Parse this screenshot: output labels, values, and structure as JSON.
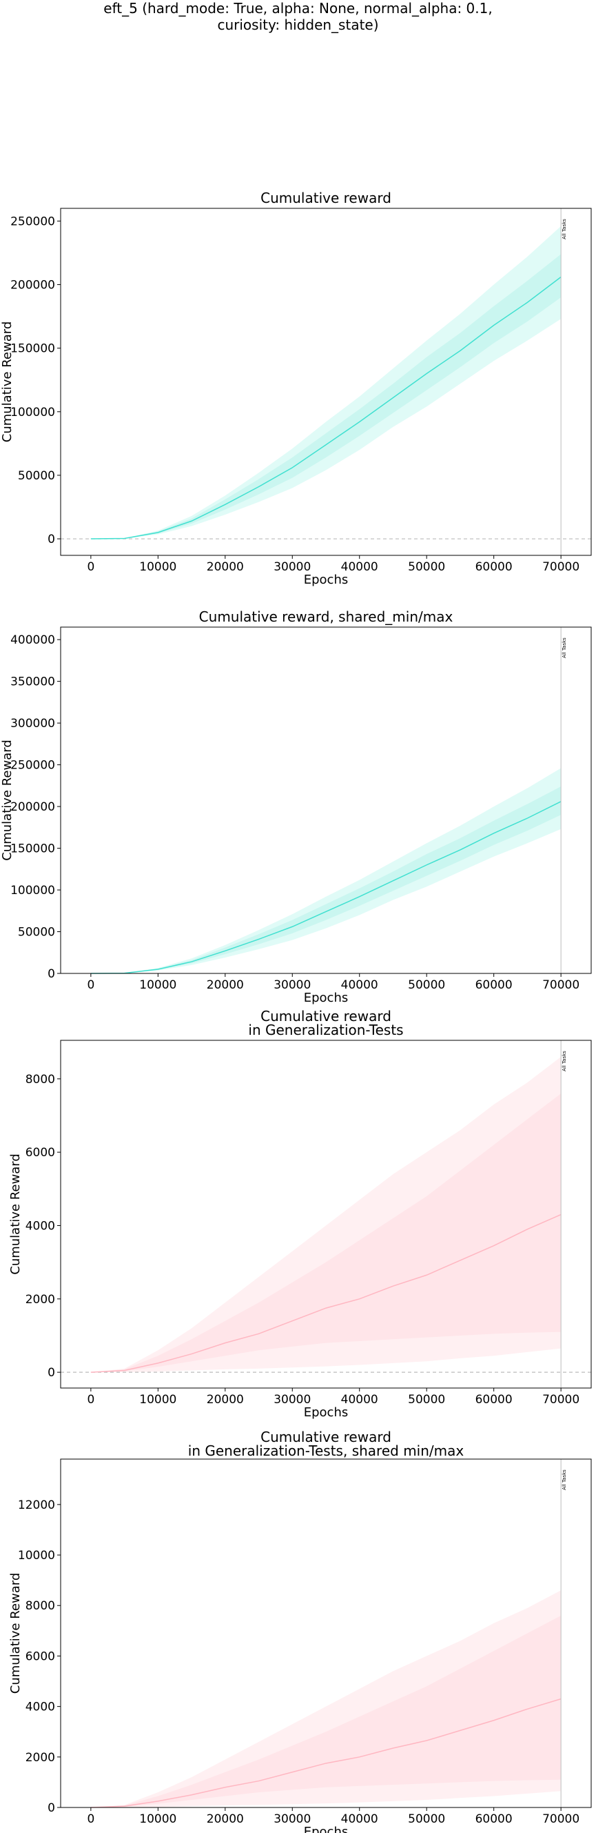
{
  "figure": {
    "suptitle_lines": [
      "eft_5 (hard_mode: True, alpha: None, normal_alpha: 0.1,",
      "curiosity: hidden_state)"
    ]
  },
  "colors": {
    "train_line": "#40e0d0",
    "train_band": "#e0fbf7",
    "train_band_inner": "#c6f5ef",
    "gen_line": "#ffb6c1",
    "gen_band": "#fff0f2",
    "gen_band_inner": "#ffe3e8",
    "marker_line": "#bbbbbb",
    "zero_line": "#bbbbbb"
  },
  "chart_data": [
    {
      "type": "line",
      "title_lines": [
        "Cumulative reward"
      ],
      "xlabel": "Epochs",
      "ylabel": "Cumulative Reward",
      "xlim": [
        -4500,
        74500
      ],
      "ylim": [
        -13000,
        260000
      ],
      "xticks": [
        0,
        10000,
        20000,
        30000,
        40000,
        50000,
        60000,
        70000
      ],
      "xtick_labels": [
        "0",
        "10000",
        "20000",
        "30000",
        "40000",
        "50000",
        "60000",
        "70000"
      ],
      "yticks": [
        0,
        50000,
        100000,
        150000,
        200000,
        250000
      ],
      "ytick_labels": [
        "0",
        "50000",
        "100000",
        "150000",
        "200000",
        "250000"
      ],
      "zero_line": true,
      "vline": {
        "x": 70000,
        "label": "All Tasks"
      },
      "series": [
        {
          "x": [
            0,
            5000,
            10000,
            15000,
            20000,
            25000,
            30000,
            35000,
            40000,
            45000,
            50000,
            55000,
            60000,
            65000,
            70000
          ],
          "mean": [
            0,
            300,
            5000,
            14000,
            27000,
            41000,
            56000,
            74000,
            92000,
            111000,
            130000,
            148000,
            168000,
            186000,
            206000
          ],
          "lower": [
            0,
            150,
            3500,
            10000,
            19000,
            29000,
            40000,
            54000,
            70000,
            88000,
            104000,
            122000,
            140000,
            156000,
            173000
          ],
          "upper": [
            0,
            450,
            6500,
            18000,
            34000,
            52000,
            71000,
            92000,
            112000,
            134000,
            156000,
            177000,
            200000,
            222000,
            246000
          ],
          "inner_lower": [
            0,
            200,
            4200,
            12000,
            23000,
            35000,
            48000,
            64000,
            81000,
            99000,
            117000,
            135000,
            154000,
            171000,
            190000
          ],
          "inner_upper": [
            0,
            400,
            5800,
            16000,
            31000,
            47000,
            64000,
            83000,
            102000,
            122000,
            143000,
            162000,
            183000,
            203000,
            224000
          ]
        }
      ]
    },
    {
      "type": "line",
      "title_lines": [
        "Cumulative reward, shared_min/max"
      ],
      "xlabel": "Epochs",
      "ylabel": "Cumulative Reward",
      "xlim": [
        -4500,
        74500
      ],
      "ylim": [
        0,
        415000
      ],
      "xticks": [
        0,
        10000,
        20000,
        30000,
        40000,
        50000,
        60000,
        70000
      ],
      "xtick_labels": [
        "0",
        "10000",
        "20000",
        "30000",
        "40000",
        "50000",
        "60000",
        "70000"
      ],
      "yticks": [
        0,
        50000,
        100000,
        150000,
        200000,
        250000,
        300000,
        350000,
        400000
      ],
      "ytick_labels": [
        "0",
        "50000",
        "100000",
        "150000",
        "200000",
        "250000",
        "300000",
        "350000",
        "400000"
      ],
      "zero_line": false,
      "vline": {
        "x": 70000,
        "label": "All Tasks"
      },
      "series": [
        {
          "x": [
            0,
            5000,
            10000,
            15000,
            20000,
            25000,
            30000,
            35000,
            40000,
            45000,
            50000,
            55000,
            60000,
            65000,
            70000
          ],
          "mean": [
            0,
            300,
            5000,
            14000,
            27000,
            41000,
            56000,
            74000,
            92000,
            111000,
            130000,
            148000,
            168000,
            186000,
            206000
          ],
          "lower": [
            0,
            150,
            3500,
            10000,
            19000,
            29000,
            40000,
            54000,
            70000,
            88000,
            104000,
            122000,
            140000,
            156000,
            173000
          ],
          "upper": [
            0,
            450,
            6500,
            18000,
            34000,
            52000,
            71000,
            92000,
            112000,
            134000,
            156000,
            177000,
            200000,
            222000,
            246000
          ],
          "inner_lower": [
            0,
            200,
            4200,
            12000,
            23000,
            35000,
            48000,
            64000,
            81000,
            99000,
            117000,
            135000,
            154000,
            171000,
            190000
          ],
          "inner_upper": [
            0,
            400,
            5800,
            16000,
            31000,
            47000,
            64000,
            83000,
            102000,
            122000,
            143000,
            162000,
            183000,
            203000,
            224000
          ]
        }
      ]
    },
    {
      "type": "line",
      "title_lines": [
        "Cumulative reward",
        "in Generalization-Tests"
      ],
      "xlabel": "Epochs",
      "ylabel": "Cumulative Reward",
      "xlim": [
        -4500,
        74500
      ],
      "ylim": [
        -430,
        9050
      ],
      "xticks": [
        0,
        10000,
        20000,
        30000,
        40000,
        50000,
        60000,
        70000
      ],
      "xtick_labels": [
        "0",
        "10000",
        "20000",
        "30000",
        "40000",
        "50000",
        "60000",
        "70000"
      ],
      "yticks": [
        0,
        2000,
        4000,
        6000,
        8000
      ],
      "ytick_labels": [
        "0",
        "2000",
        "4000",
        "6000",
        "8000"
      ],
      "zero_line": true,
      "vline": {
        "x": 70000,
        "label": "All Tasks"
      },
      "series": [
        {
          "x": [
            0,
            5000,
            10000,
            15000,
            20000,
            25000,
            30000,
            35000,
            40000,
            45000,
            50000,
            55000,
            60000,
            65000,
            70000
          ],
          "mean": [
            0,
            50,
            250,
            500,
            800,
            1050,
            1400,
            1750,
            2000,
            2350,
            2650,
            3050,
            3450,
            3900,
            4300
          ],
          "lower": [
            0,
            0,
            20,
            50,
            80,
            100,
            130,
            160,
            200,
            250,
            300,
            380,
            450,
            550,
            650
          ],
          "upper": [
            0,
            100,
            600,
            1200,
            1900,
            2600,
            3300,
            4000,
            4700,
            5400,
            6000,
            6600,
            7300,
            7900,
            8600
          ],
          "inner_lower": [
            0,
            25,
            150,
            300,
            450,
            600,
            700,
            800,
            850,
            900,
            950,
            1000,
            1050,
            1080,
            1100
          ],
          "inner_upper": [
            0,
            80,
            450,
            900,
            1400,
            1900,
            2450,
            3000,
            3600,
            4200,
            4800,
            5500,
            6200,
            6900,
            7600
          ]
        }
      ]
    },
    {
      "type": "line",
      "title_lines": [
        "Cumulative reward",
        "in Generalization-Tests, shared min/max"
      ],
      "xlabel": "Epochs",
      "ylabel": "Cumulative Reward",
      "xlim": [
        -4500,
        74500
      ],
      "ylim": [
        0,
        13800
      ],
      "xticks": [
        0,
        10000,
        20000,
        30000,
        40000,
        50000,
        60000,
        70000
      ],
      "xtick_labels": [
        "0",
        "10000",
        "20000",
        "30000",
        "40000",
        "50000",
        "60000",
        "70000"
      ],
      "yticks": [
        0,
        2000,
        4000,
        6000,
        8000,
        10000,
        12000
      ],
      "ytick_labels": [
        "0",
        "2000",
        "4000",
        "6000",
        "8000",
        "10000",
        "12000"
      ],
      "zero_line": false,
      "vline": {
        "x": 70000,
        "label": "All Tasks"
      },
      "series": [
        {
          "x": [
            0,
            5000,
            10000,
            15000,
            20000,
            25000,
            30000,
            35000,
            40000,
            45000,
            50000,
            55000,
            60000,
            65000,
            70000
          ],
          "mean": [
            0,
            50,
            250,
            500,
            800,
            1050,
            1400,
            1750,
            2000,
            2350,
            2650,
            3050,
            3450,
            3900,
            4300
          ],
          "lower": [
            0,
            0,
            20,
            50,
            80,
            100,
            130,
            160,
            200,
            250,
            300,
            380,
            450,
            550,
            650
          ],
          "upper": [
            0,
            100,
            600,
            1200,
            1900,
            2600,
            3300,
            4000,
            4700,
            5400,
            6000,
            6600,
            7300,
            7900,
            8600
          ],
          "inner_lower": [
            0,
            25,
            150,
            300,
            450,
            600,
            700,
            800,
            850,
            900,
            950,
            1000,
            1050,
            1080,
            1100
          ],
          "inner_upper": [
            0,
            80,
            450,
            900,
            1400,
            1900,
            2450,
            3000,
            3600,
            4200,
            4800,
            5500,
            6200,
            6900,
            7600
          ]
        }
      ]
    }
  ]
}
